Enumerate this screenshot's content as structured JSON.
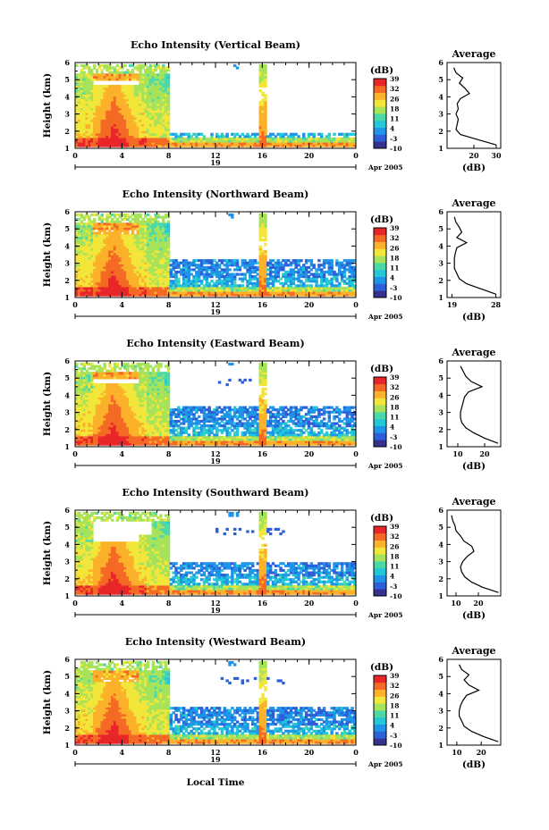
{
  "figure": {
    "xlabel_bottom": "Local Time",
    "colorbar_unit": "(dB)",
    "colorbar_ticks": [
      39,
      32,
      26,
      18,
      11,
      4,
      -3,
      -10
    ],
    "colorscale": [
      "#35318f",
      "#2c5fd8",
      "#1f95e8",
      "#22c7d8",
      "#4cd9a8",
      "#a6e35a",
      "#f2e63a",
      "#fbb12a",
      "#f46a25",
      "#e8262a"
    ],
    "blank_color": "#ffffff"
  },
  "chart_data": [
    {
      "type": "heatmap",
      "title": "Echo Intensity (Vertical Beam)",
      "ylabel": "Height (km)",
      "ylim": [
        1,
        6
      ],
      "yticks": [
        1,
        2,
        3,
        4,
        5,
        6
      ],
      "xlim": [
        0,
        24
      ],
      "xticks": [
        "0",
        "4",
        "8",
        "12",
        "16",
        "20",
        "0"
      ],
      "date_label": "19",
      "date_suffix": "Apr 2005",
      "profile": {
        "type": "line",
        "title": "Average",
        "xlabel": "(dB)",
        "xticks": [
          "20",
          "30"
        ],
        "xlim": [
          8,
          32
        ],
        "ylim": [
          1,
          6
        ],
        "heights": [
          1.2,
          1.5,
          1.8,
          2.1,
          2.4,
          2.7,
          3.0,
          3.3,
          3.6,
          3.9,
          4.2,
          4.5,
          4.8,
          5.1,
          5.4,
          5.7
        ],
        "values": [
          30,
          22,
          14,
          12,
          12.5,
          13,
          12,
          13,
          12.5,
          14,
          18,
          16,
          13.5,
          15,
          12,
          11
        ]
      }
    },
    {
      "type": "heatmap",
      "title": "Echo Intensity (Northward Beam)",
      "ylabel": "Height (km)",
      "ylim": [
        1,
        6
      ],
      "yticks": [
        1,
        2,
        3,
        4,
        5,
        6
      ],
      "xlim": [
        0,
        24
      ],
      "xticks": [
        "0",
        "4",
        "8",
        "12",
        "16",
        "20",
        "0"
      ],
      "date_label": "19",
      "date_suffix": "Apr 2005",
      "profile": {
        "type": "line",
        "title": "Average",
        "xlabel": "(dB)",
        "xticks": [
          "19",
          "28"
        ],
        "xlim": [
          18,
          29
        ],
        "ylim": [
          1,
          6
        ],
        "heights": [
          1.2,
          1.5,
          1.8,
          2.1,
          2.4,
          2.7,
          3.0,
          3.3,
          3.6,
          3.9,
          4.2,
          4.5,
          4.8,
          5.1,
          5.4,
          5.7
        ],
        "values": [
          28,
          25,
          22,
          20.5,
          20,
          19.5,
          19.5,
          19.5,
          19.7,
          20,
          22,
          20,
          21,
          20.5,
          19.8,
          19.5
        ]
      }
    },
    {
      "type": "heatmap",
      "title": "Echo Intensity (Eastward Beam)",
      "ylabel": "Height (km)",
      "ylim": [
        1,
        6
      ],
      "yticks": [
        1,
        2,
        3,
        4,
        5,
        6
      ],
      "xlim": [
        0,
        24
      ],
      "xticks": [
        "0",
        "4",
        "8",
        "12",
        "16",
        "20",
        "0"
      ],
      "date_label": "19",
      "date_suffix": "Apr 2005",
      "profile": {
        "type": "line",
        "title": "Average",
        "xlabel": "(dB)",
        "xticks": [
          "10",
          "20"
        ],
        "xlim": [
          6,
          26
        ],
        "ylim": [
          1,
          6
        ],
        "heights": [
          1.2,
          1.5,
          1.8,
          2.1,
          2.4,
          2.7,
          3.0,
          3.3,
          3.6,
          3.9,
          4.2,
          4.5,
          4.8,
          5.1,
          5.4,
          5.7
        ],
        "values": [
          25,
          20,
          16,
          13,
          11.5,
          11,
          11,
          11.5,
          12,
          12.5,
          14,
          19,
          15,
          13,
          12,
          11
        ]
      }
    },
    {
      "type": "heatmap",
      "title": "Echo Intensity (Southward Beam)",
      "ylabel": "Height (km)",
      "ylim": [
        1,
        6
      ],
      "yticks": [
        1,
        2,
        3,
        4,
        5,
        6
      ],
      "xlim": [
        0,
        24
      ],
      "xticks": [
        "0",
        "4",
        "8",
        "12",
        "16",
        "20",
        "0"
      ],
      "date_label": "19",
      "date_suffix": "Apr 2005",
      "profile": {
        "type": "line",
        "title": "Average",
        "xlabel": "(dB)",
        "xticks": [
          "10",
          "20"
        ],
        "xlim": [
          6,
          30
        ],
        "ylim": [
          1,
          6
        ],
        "heights": [
          1.2,
          1.5,
          1.8,
          2.1,
          2.4,
          2.7,
          3.0,
          3.3,
          3.6,
          3.9,
          4.2,
          4.5,
          4.8,
          5.1,
          5.4,
          5.7
        ],
        "values": [
          29,
          22,
          17,
          14,
          12.5,
          12,
          13,
          15,
          18,
          17,
          13.5,
          12,
          10,
          9.5,
          8.5,
          8
        ]
      }
    },
    {
      "type": "heatmap",
      "title": "Echo Intensity (Westward Beam)",
      "ylabel": "Height (km)",
      "ylim": [
        1,
        6
      ],
      "yticks": [
        1,
        2,
        3,
        4,
        5,
        6
      ],
      "xlim": [
        0,
        24
      ],
      "xticks": [
        "0",
        "4",
        "8",
        "12",
        "16",
        "20",
        "0"
      ],
      "date_label": "19",
      "date_suffix": "Apr 2005",
      "profile": {
        "type": "line",
        "title": "Average",
        "xlabel": "(dB)",
        "xticks": [
          "10",
          "20"
        ],
        "xlim": [
          6,
          28
        ],
        "ylim": [
          1,
          6
        ],
        "heights": [
          1.2,
          1.5,
          1.8,
          2.1,
          2.4,
          2.7,
          3.0,
          3.3,
          3.6,
          3.9,
          4.2,
          4.5,
          4.8,
          5.1,
          5.4,
          5.7
        ],
        "values": [
          27,
          21,
          16,
          13,
          12,
          11,
          11,
          11.5,
          12.5,
          14,
          19,
          15,
          13,
          15,
          12,
          11
        ]
      }
    }
  ]
}
